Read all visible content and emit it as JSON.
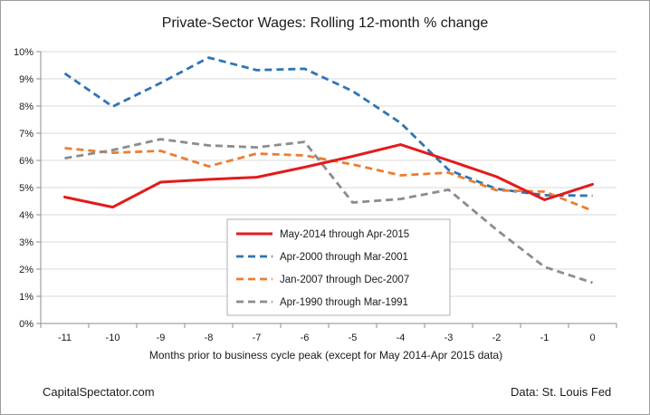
{
  "chart_data": {
    "type": "line",
    "title": "Private-Sector Wages: Rolling 12-month % change",
    "xlabel": "Months prior to business cycle peak (except for May 2014-Apr 2015 data)",
    "ylabel": "",
    "x": [
      -11,
      -10,
      -9,
      -8,
      -7,
      -6,
      -5,
      -4,
      -3,
      -2,
      -1,
      0
    ],
    "x_tick_labels": [
      "-11",
      "-10",
      "-9",
      "-8",
      "-7",
      "-6",
      "-5",
      "-4",
      "-3",
      "-2",
      "-1",
      "0"
    ],
    "ylim": [
      0,
      10
    ],
    "y_ticks": [
      0,
      1,
      2,
      3,
      4,
      5,
      6,
      7,
      8,
      9,
      10
    ],
    "y_tick_labels": [
      "0%",
      "1%",
      "2%",
      "3%",
      "4%",
      "5%",
      "6%",
      "7%",
      "8%",
      "9%",
      "10%"
    ],
    "grid": "horizontal",
    "legend_position": "center-bottom",
    "series": [
      {
        "name": "May-2014 through Apr-2015",
        "color": "#e31b1b",
        "style": "solid",
        "values": [
          4.65,
          4.28,
          5.2,
          5.3,
          5.38,
          5.75,
          6.15,
          6.58,
          6.0,
          5.4,
          4.55,
          5.12
        ]
      },
      {
        "name": "Apr-2000 through Mar-2001",
        "color": "#2e75b6",
        "style": "dashed",
        "values": [
          9.2,
          7.98,
          8.85,
          9.78,
          9.32,
          9.37,
          8.55,
          7.38,
          5.65,
          4.95,
          4.72,
          4.7
        ]
      },
      {
        "name": "Jan-2007 through Dec-2007",
        "color": "#ed7d31",
        "style": "dashed",
        "values": [
          6.45,
          6.28,
          6.35,
          5.78,
          6.25,
          6.18,
          5.85,
          5.45,
          5.55,
          4.9,
          4.85,
          4.15
        ]
      },
      {
        "name": "Apr-1990 through Mar-1991",
        "color": "#8c8c8c",
        "style": "dashed",
        "values": [
          6.08,
          6.38,
          6.78,
          6.55,
          6.48,
          6.68,
          4.45,
          4.58,
          4.92,
          3.45,
          2.08,
          1.5
        ]
      }
    ]
  },
  "footer": {
    "left_note": "CapitalSpectator.com",
    "right_note": "Data: St. Louis Fed"
  }
}
